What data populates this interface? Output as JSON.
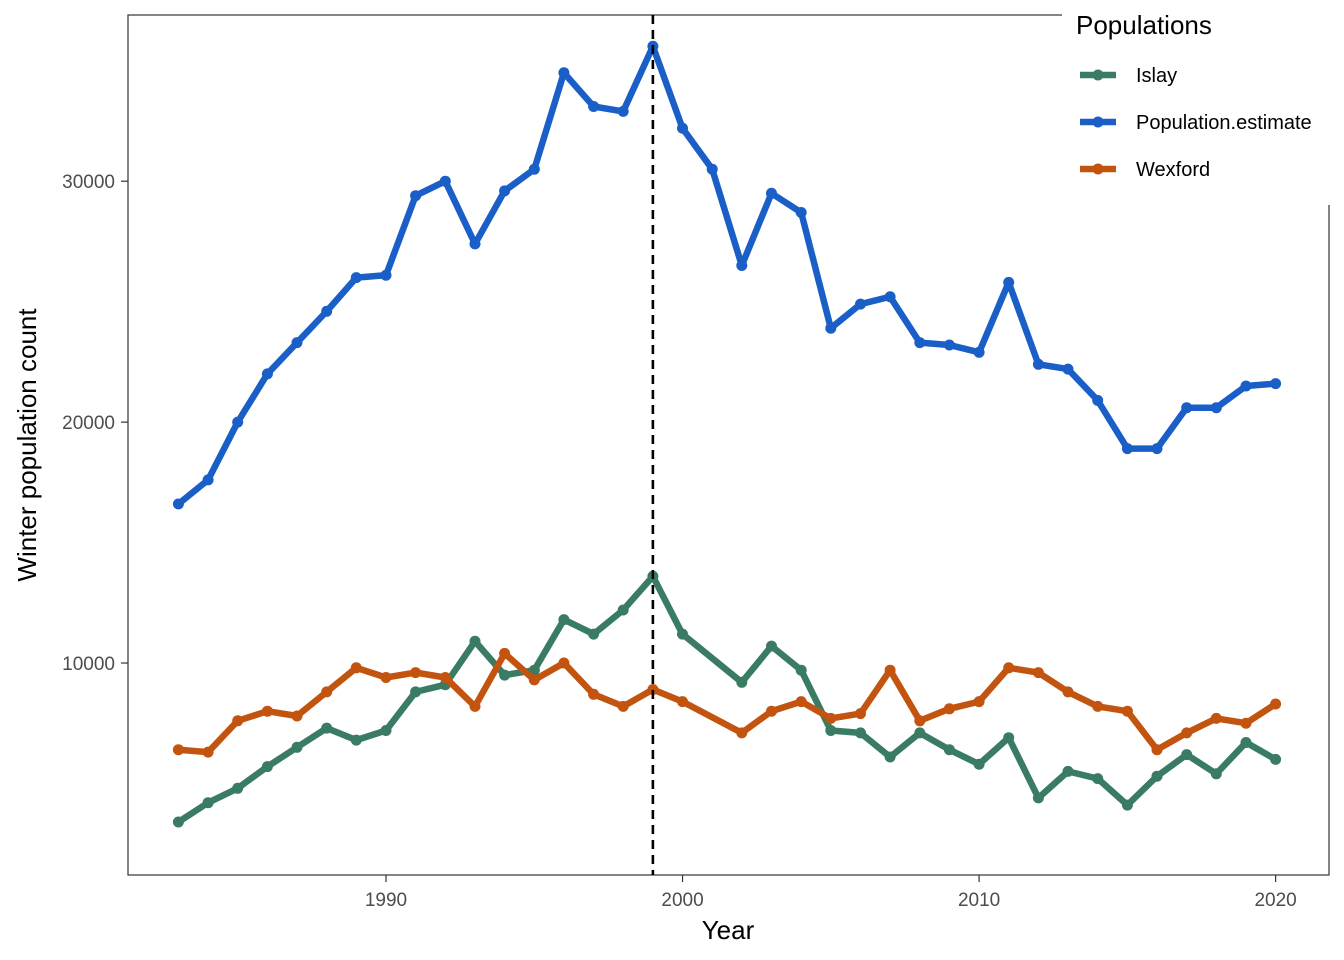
{
  "chart_data": {
    "type": "line",
    "xlabel": "Year",
    "ylabel": "Winter population count",
    "xlim": [
      1981.3,
      2021.8
    ],
    "ylim": [
      1200,
      36900
    ],
    "x_ticks": [
      1990,
      2000,
      2010,
      2020
    ],
    "y_ticks": [
      10000,
      20000,
      30000
    ],
    "grid": false,
    "legend_position": "top-right",
    "legend_title": "Populations",
    "vline": {
      "x": 1999,
      "style": "dashed",
      "color": "#000000"
    },
    "x": [
      1983,
      1984,
      1985,
      1986,
      1987,
      1988,
      1989,
      1990,
      1991,
      1992,
      1993,
      1994,
      1995,
      1996,
      1997,
      1998,
      1999,
      2000,
      2001,
      2002,
      2003,
      2004,
      2005,
      2006,
      2007,
      2008,
      2009,
      2010,
      2011,
      2012,
      2013,
      2014,
      2015,
      2016,
      2017,
      2018,
      2019,
      2020
    ],
    "series": [
      {
        "name": "Islay",
        "color": "#3a7c63",
        "values": [
          3400,
          4200,
          4800,
          5700,
          6500,
          7300,
          6800,
          7200,
          8800,
          9100,
          10900,
          9500,
          9700,
          11800,
          11200,
          12200,
          13600,
          11200,
          null,
          9200,
          10700,
          9700,
          7200,
          7100,
          6100,
          7100,
          6400,
          5800,
          6900,
          4400,
          5500,
          5200,
          4100,
          5300,
          6200,
          5400,
          6700,
          6000
        ]
      },
      {
        "name": "Population.estimate",
        "color": "#1a5ec7",
        "values": [
          16600,
          17600,
          20000,
          22000,
          23300,
          24600,
          26000,
          26100,
          29400,
          30000,
          27400,
          29600,
          30500,
          34500,
          33100,
          32900,
          35600,
          32200,
          30500,
          26500,
          29500,
          28700,
          23900,
          24900,
          25200,
          23300,
          23200,
          22900,
          25800,
          22400,
          22200,
          20900,
          18900,
          18900,
          20600,
          20600,
          21500,
          21600
        ]
      },
      {
        "name": "Wexford",
        "color": "#c25410",
        "values": [
          6400,
          6300,
          7600,
          8000,
          7800,
          8800,
          9800,
          9400,
          9600,
          9400,
          8200,
          10400,
          9300,
          10000,
          8700,
          8200,
          8900,
          8400,
          null,
          7100,
          8000,
          8400,
          7700,
          7900,
          9700,
          7600,
          8100,
          8400,
          9800,
          9600,
          8800,
          8200,
          8000,
          6400,
          7100,
          7700,
          7500,
          8300
        ]
      }
    ]
  }
}
